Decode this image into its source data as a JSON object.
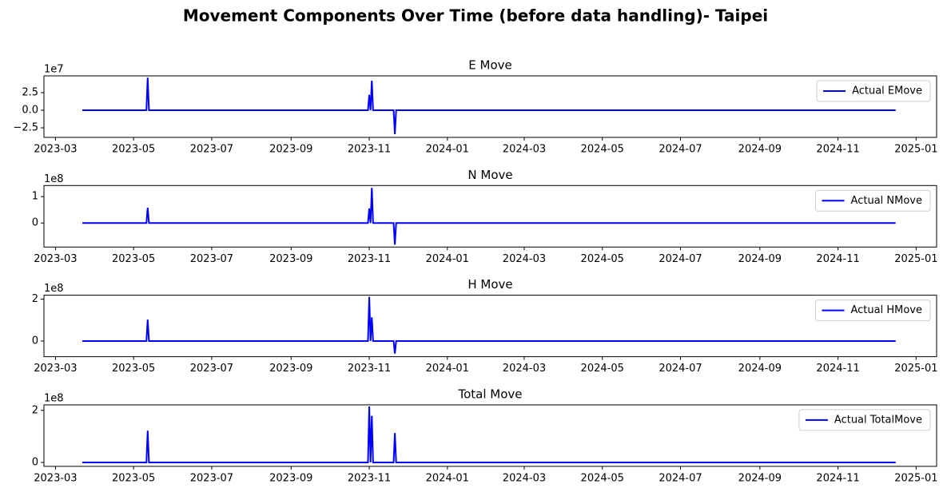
{
  "title": "Movement Components Over Time (before data handling)- Taipei",
  "chart_data": [
    {
      "type": "line",
      "title": "E Move",
      "y_offset_label": "1e7",
      "x": [
        "2023-03-22",
        "2023-05-11",
        "2023-05-12",
        "2023-05-13",
        "2023-10-31",
        "2023-11-01",
        "2023-11-02",
        "2023-11-03",
        "2023-11-04",
        "2023-11-20",
        "2023-11-21",
        "2023-11-22",
        "2024-12-16"
      ],
      "series": [
        {
          "name": "Actual EMove",
          "color": "#0000ff",
          "values": [
            0,
            0,
            46500000,
            0,
            0,
            22000000,
            0,
            42000000,
            0,
            0,
            -34000000,
            0,
            0
          ]
        }
      ],
      "xlim": [
        "2023-02-20",
        "2025-01-17"
      ],
      "xticks": [
        {
          "value": "2023-03-01",
          "label": "2023-03"
        },
        {
          "value": "2023-05-01",
          "label": "2023-05"
        },
        {
          "value": "2023-07-01",
          "label": "2023-07"
        },
        {
          "value": "2023-09-01",
          "label": "2023-09"
        },
        {
          "value": "2023-11-01",
          "label": "2023-11"
        },
        {
          "value": "2024-01-01",
          "label": "2024-01"
        },
        {
          "value": "2024-03-01",
          "label": "2024-03"
        },
        {
          "value": "2024-05-01",
          "label": "2024-05"
        },
        {
          "value": "2024-07-01",
          "label": "2024-07"
        },
        {
          "value": "2024-09-01",
          "label": "2024-09"
        },
        {
          "value": "2024-11-01",
          "label": "2024-11"
        },
        {
          "value": "2025-01-01",
          "label": "2025-01"
        }
      ],
      "ylim": [
        -38600000,
        48900000
      ],
      "yticks": [
        {
          "value": -25000000,
          "label": "−2.5"
        },
        {
          "value": 0,
          "label": "0.0"
        },
        {
          "value": 25000000,
          "label": "2.5"
        }
      ],
      "legend": "upper right"
    },
    {
      "type": "line",
      "title": "N Move",
      "y_offset_label": "1e8",
      "x": [
        "2023-03-22",
        "2023-05-11",
        "2023-05-12",
        "2023-05-13",
        "2023-10-31",
        "2023-11-01",
        "2023-11-02",
        "2023-11-03",
        "2023-11-04",
        "2023-11-20",
        "2023-11-21",
        "2023-11-22",
        "2024-12-16"
      ],
      "series": [
        {
          "name": "Actual NMove",
          "color": "#0000ff",
          "values": [
            0,
            0,
            58000000,
            0,
            0,
            55000000,
            0,
            133000000,
            0,
            0,
            -82000000,
            0,
            0
          ]
        }
      ],
      "xlim": [
        "2023-02-20",
        "2025-01-17"
      ],
      "xticks": [
        {
          "value": "2023-03-01",
          "label": "2023-03"
        },
        {
          "value": "2023-05-01",
          "label": "2023-05"
        },
        {
          "value": "2023-07-01",
          "label": "2023-07"
        },
        {
          "value": "2023-09-01",
          "label": "2023-09"
        },
        {
          "value": "2023-11-01",
          "label": "2023-11"
        },
        {
          "value": "2024-01-01",
          "label": "2024-01"
        },
        {
          "value": "2024-03-01",
          "label": "2024-03"
        },
        {
          "value": "2024-05-01",
          "label": "2024-05"
        },
        {
          "value": "2024-07-01",
          "label": "2024-07"
        },
        {
          "value": "2024-09-01",
          "label": "2024-09"
        },
        {
          "value": "2024-11-01",
          "label": "2024-11"
        },
        {
          "value": "2025-01-01",
          "label": "2025-01"
        }
      ],
      "ylim": [
        -91000000,
        142000000
      ],
      "yticks": [
        0,
        {
          "value": 100000000,
          "label": "1"
        }
      ],
      "legend": "upper right"
    },
    {
      "type": "line",
      "title": "H Move",
      "y_offset_label": "1e8",
      "x": [
        "2023-03-22",
        "2023-05-11",
        "2023-05-12",
        "2023-05-13",
        "2023-10-31",
        "2023-11-01",
        "2023-11-02",
        "2023-11-03",
        "2023-11-04",
        "2023-11-20",
        "2023-11-21",
        "2023-11-22",
        "2024-12-16"
      ],
      "series": [
        {
          "name": "Actual HMove",
          "color": "#0000ff",
          "values": [
            0,
            0,
            102000000,
            0,
            0,
            211000000,
            0,
            113000000,
            0,
            0,
            -60000000,
            0,
            0
          ]
        }
      ],
      "xlim": [
        "2023-02-20",
        "2025-01-17"
      ],
      "xticks": [
        {
          "value": "2023-03-01",
          "label": "2023-03"
        },
        {
          "value": "2023-05-01",
          "label": "2023-05"
        },
        {
          "value": "2023-07-01",
          "label": "2023-07"
        },
        {
          "value": "2023-09-01",
          "label": "2023-09"
        },
        {
          "value": "2023-11-01",
          "label": "2023-11"
        },
        {
          "value": "2024-01-01",
          "label": "2024-01"
        },
        {
          "value": "2024-03-01",
          "label": "2024-03"
        },
        {
          "value": "2024-05-01",
          "label": "2024-05"
        },
        {
          "value": "2024-07-01",
          "label": "2024-07"
        },
        {
          "value": "2024-09-01",
          "label": "2024-09"
        },
        {
          "value": "2024-11-01",
          "label": "2024-11"
        },
        {
          "value": "2025-01-01",
          "label": "2025-01"
        }
      ],
      "ylim": [
        -75000000,
        219000000
      ],
      "yticks": [
        0,
        {
          "value": 200000000,
          "label": "2"
        }
      ],
      "legend": "upper right"
    },
    {
      "type": "line",
      "title": "Total Move",
      "y_offset_label": "1e8",
      "x": [
        "2023-03-22",
        "2023-05-11",
        "2023-05-12",
        "2023-05-13",
        "2023-10-31",
        "2023-11-01",
        "2023-11-02",
        "2023-11-03",
        "2023-11-04",
        "2023-11-20",
        "2023-11-21",
        "2023-11-22",
        "2024-12-16"
      ],
      "series": [
        {
          "name": "Actual TotalMove",
          "color": "#0000ff",
          "values": [
            0,
            0,
            122000000,
            0,
            0,
            215000000,
            0,
            179000000,
            0,
            0,
            113000000,
            0,
            0
          ]
        }
      ],
      "xlim": [
        "2023-02-20",
        "2025-01-17"
      ],
      "xticks": [
        {
          "value": "2023-03-01",
          "label": "2023-03"
        },
        {
          "value": "2023-05-01",
          "label": "2023-05"
        },
        {
          "value": "2023-07-01",
          "label": "2023-07"
        },
        {
          "value": "2023-09-01",
          "label": "2023-09"
        },
        {
          "value": "2023-11-01",
          "label": "2023-11"
        },
        {
          "value": "2024-01-01",
          "label": "2024-01"
        },
        {
          "value": "2024-03-01",
          "label": "2024-03"
        },
        {
          "value": "2024-05-01",
          "label": "2024-05"
        },
        {
          "value": "2024-07-01",
          "label": "2024-07"
        },
        {
          "value": "2024-09-01",
          "label": "2024-09"
        },
        {
          "value": "2024-11-01",
          "label": "2024-11"
        },
        {
          "value": "2025-01-01",
          "label": "2025-01"
        }
      ],
      "ylim": [
        -15000000,
        221000000
      ],
      "yticks": [
        0,
        {
          "value": 200000000,
          "label": "2"
        }
      ],
      "legend": "upper right"
    }
  ]
}
